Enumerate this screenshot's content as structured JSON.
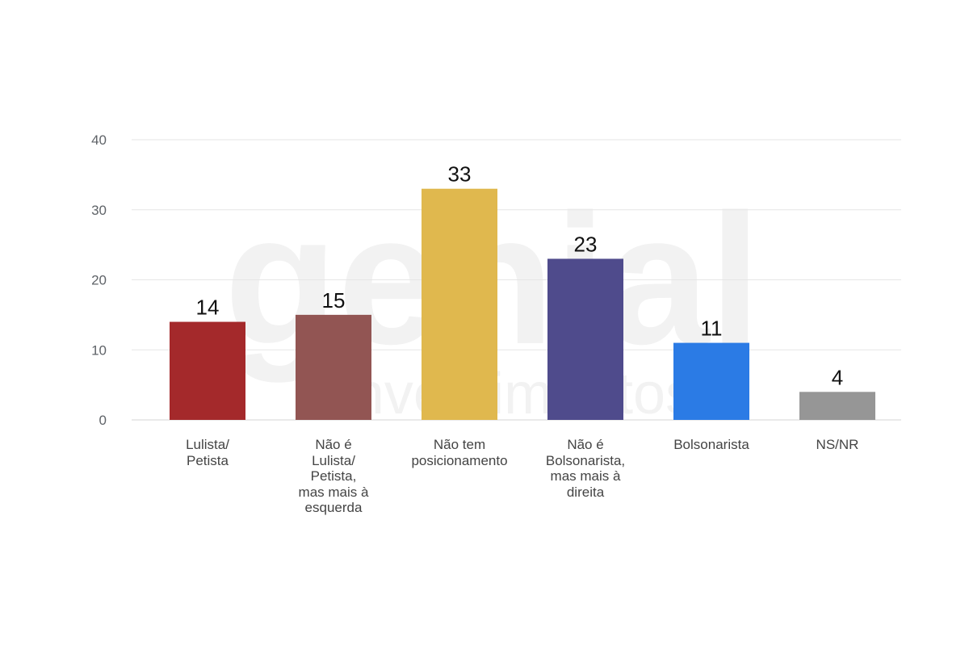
{
  "chart_data": {
    "type": "bar",
    "title": "",
    "xlabel": "",
    "ylabel": "",
    "categories": [
      "Lulista/\nPetista",
      "Não é\nLulista/\nPetista,\nmas mais à\nesquerda",
      "Não tem\nposicionamento",
      "Não é\nBolsonarista,\nmas mais à\ndireita",
      "Bolsonarista",
      "NS/NR"
    ],
    "values": [
      14,
      15,
      33,
      23,
      11,
      4
    ],
    "colors": [
      "#a4292b",
      "#925553",
      "#e0b84e",
      "#4f4b8c",
      "#2b7be5",
      "#969696"
    ],
    "ylim": [
      0,
      40
    ],
    "yticks": [
      "0",
      "10",
      "20",
      "30",
      "40"
    ],
    "grid": true,
    "legend": "none"
  },
  "watermark": {
    "line1": "genial",
    "line2": "investimentos",
    "color": "#f2f2f2"
  }
}
